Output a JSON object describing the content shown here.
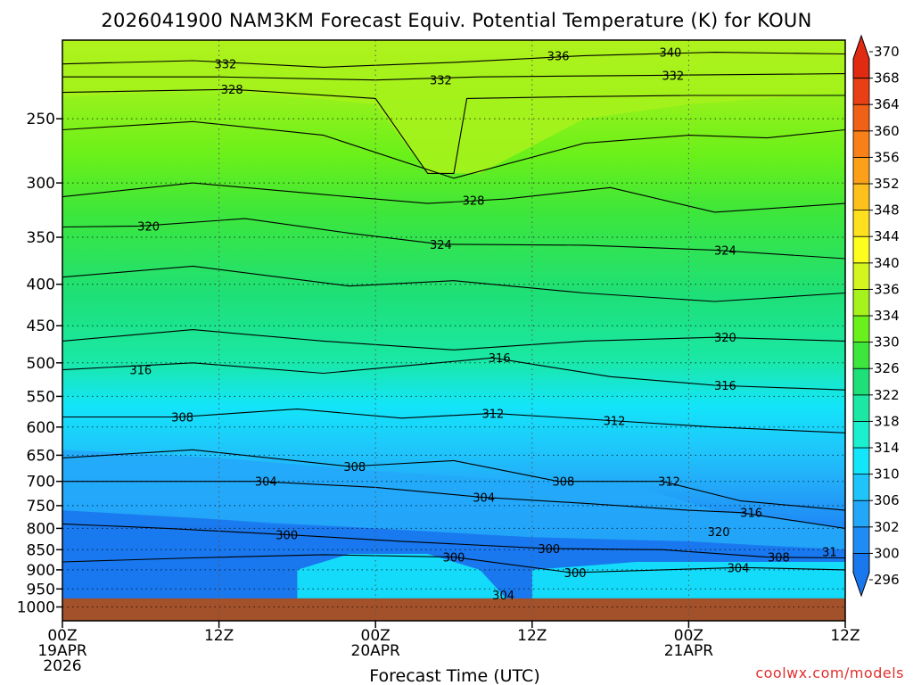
{
  "chart_data": {
    "type": "heatmap",
    "title": "2026041900 NAM3KM Forecast Equiv. Potential Temperature (K) for KOUN",
    "xlabel": "Forecast Time (UTC)",
    "ylabel": "",
    "variable": "Equivalent Potential Temperature (K)",
    "x_ticks": [
      {
        "hour": 0,
        "line1": "00Z",
        "line2": "19APR",
        "line3": "2026"
      },
      {
        "hour": 12,
        "line1": "12Z",
        "line2": "",
        "line3": ""
      },
      {
        "hour": 24,
        "line1": "00Z",
        "line2": "20APR",
        "line3": ""
      },
      {
        "hour": 36,
        "line1": "12Z",
        "line2": "",
        "line3": ""
      },
      {
        "hour": 48,
        "line1": "00Z",
        "line2": "21APR",
        "line3": ""
      },
      {
        "hour": 60,
        "line1": "12Z",
        "line2": "",
        "line3": ""
      }
    ],
    "x_range_hours": [
      0,
      60
    ],
    "y_ticks": [
      250,
      300,
      350,
      400,
      450,
      500,
      550,
      600,
      650,
      700,
      750,
      800,
      850,
      900,
      950,
      1000
    ],
    "y_range_hpa": [
      200,
      1040
    ],
    "y_scale": "log-pressure",
    "surface_pressure_hpa": 976,
    "colorbar": {
      "levels": [
        296,
        300,
        302,
        306,
        310,
        314,
        318,
        322,
        326,
        330,
        334,
        336,
        340,
        344,
        348,
        352,
        356,
        360,
        364,
        368,
        370
      ],
      "colors": [
        "#1a78ee",
        "#1f8cf6",
        "#23a8f9",
        "#1fc4fb",
        "#13e5fa",
        "#1af0d0",
        "#1ae8a4",
        "#1ee078",
        "#3ce63c",
        "#6af01a",
        "#a6f21c",
        "#d4f51e",
        "#fefe1e",
        "#fee01e",
        "#fdc01c",
        "#fca01a",
        "#f88018",
        "#f06016",
        "#e84014",
        "#e02a12"
      ]
    },
    "contour_labels": [
      {
        "hour": 12.5,
        "p": 214,
        "value": "332"
      },
      {
        "hour": 38,
        "p": 209,
        "value": "336"
      },
      {
        "hour": 46.6,
        "p": 207,
        "value": "340"
      },
      {
        "hour": 13,
        "p": 230,
        "value": "328"
      },
      {
        "hour": 29,
        "p": 224,
        "value": "332"
      },
      {
        "hour": 46.8,
        "p": 221,
        "value": "332"
      },
      {
        "hour": 31.5,
        "p": 315,
        "value": "328"
      },
      {
        "hour": 6.6,
        "p": 339,
        "value": "320"
      },
      {
        "hour": 29,
        "p": 357,
        "value": "324"
      },
      {
        "hour": 50.8,
        "p": 363,
        "value": "324"
      },
      {
        "hour": 50.8,
        "p": 465,
        "value": "320"
      },
      {
        "hour": 33.5,
        "p": 493,
        "value": "316"
      },
      {
        "hour": 6,
        "p": 510,
        "value": "316"
      },
      {
        "hour": 50.8,
        "p": 533,
        "value": "316"
      },
      {
        "hour": 9.2,
        "p": 583,
        "value": "308"
      },
      {
        "hour": 33,
        "p": 577,
        "value": "312"
      },
      {
        "hour": 42.3,
        "p": 589,
        "value": "312"
      },
      {
        "hour": 22.4,
        "p": 671,
        "value": "308"
      },
      {
        "hour": 15.6,
        "p": 700,
        "value": "304"
      },
      {
        "hour": 38.4,
        "p": 700,
        "value": "308"
      },
      {
        "hour": 46.5,
        "p": 700,
        "value": "312"
      },
      {
        "hour": 32.3,
        "p": 732,
        "value": "304"
      },
      {
        "hour": 52.8,
        "p": 765,
        "value": "316"
      },
      {
        "hour": 50.3,
        "p": 807,
        "value": "320"
      },
      {
        "hour": 17.2,
        "p": 814,
        "value": "300"
      },
      {
        "hour": 37.3,
        "p": 847,
        "value": "300"
      },
      {
        "hour": 30,
        "p": 868,
        "value": "300"
      },
      {
        "hour": 54.9,
        "p": 868,
        "value": "308"
      },
      {
        "hour": 58.8,
        "p": 855,
        "value": "31"
      },
      {
        "hour": 39.3,
        "p": 907,
        "value": "300"
      },
      {
        "hour": 51.8,
        "p": 894,
        "value": "304"
      },
      {
        "hour": 33.8,
        "p": 966,
        "value": "304"
      }
    ],
    "credit": "coolwx.com/models"
  }
}
